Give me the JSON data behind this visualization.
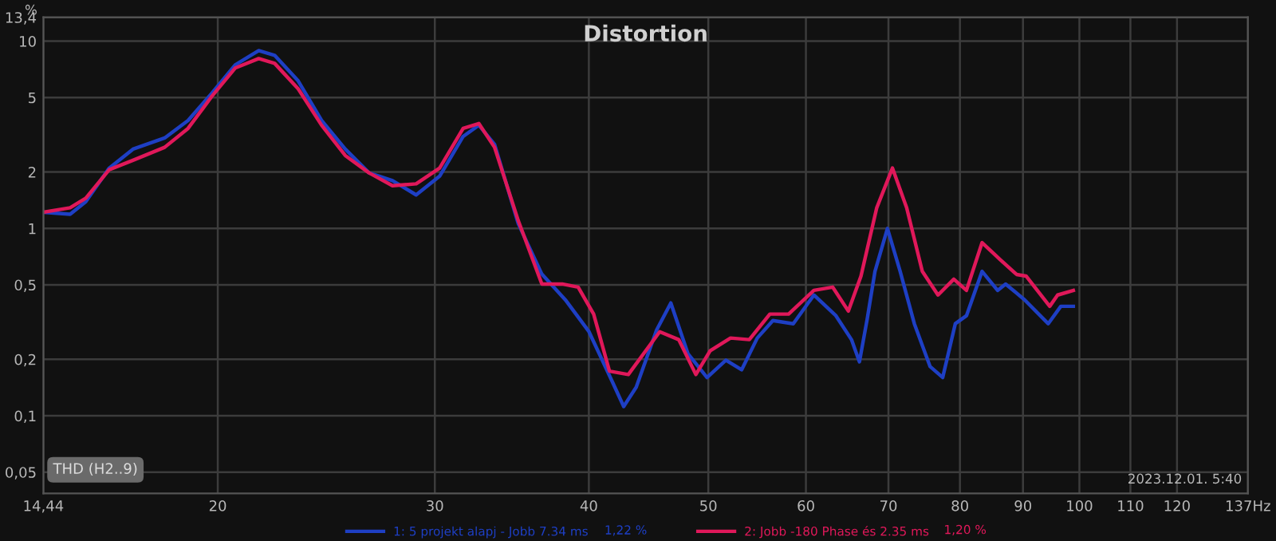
{
  "chart_data": {
    "type": "line",
    "title": "Distortion",
    "ylabel": "%",
    "log": "xy",
    "grid": true,
    "legend": "bottom",
    "marker": "none",
    "line_style": "solid",
    "xlim": [
      14.44,
      137
    ],
    "ylim": [
      0.0385,
      13.4
    ],
    "xticks": [
      {
        "value": 14.44,
        "label": "14,44"
      },
      20,
      30,
      40,
      50,
      60,
      70,
      80,
      90,
      100,
      110,
      120,
      {
        "value": 137,
        "label": "137Hz"
      }
    ],
    "yticks": [
      {
        "value": 0.05,
        "label": "0,05"
      },
      {
        "value": 0.1,
        "label": "0,1"
      },
      {
        "value": 0.2,
        "label": "0,2"
      },
      {
        "value": 0.5,
        "label": "0,5"
      },
      1,
      2,
      5,
      10,
      {
        "value": 13.4,
        "label": "13,4"
      }
    ],
    "annotations": [
      "THD (H2..9)",
      "2023.12.01. 5:40",
      "1,22 %",
      "1,20 %"
    ],
    "series": [
      {
        "name": "1: 5 projekt alapj - Jobb 7.34 ms",
        "color": "#1e3fc4",
        "x": [
          14.44,
          15.18,
          15.63,
          16.33,
          17.07,
          18.11,
          18.92,
          19.77,
          20.66,
          21.59,
          22.24,
          23.24,
          24.28,
          25.38,
          26.53,
          27.72,
          28.97,
          30.27,
          31.63,
          32.57,
          33.54,
          35.06,
          36.64,
          38.28,
          40.01,
          41.81,
          42.69,
          43.7,
          45.4,
          46.62,
          48.14,
          49.88,
          51.67,
          53.21,
          54.79,
          56.41,
          58.6,
          60.9,
          63.46,
          65.33,
          66.31,
          67.28,
          68.26,
          69.87,
          71.55,
          73.47,
          75.67,
          77.47,
          79.31,
          80.98,
          83.38,
          85.83,
          87.13,
          90.27,
          94.34,
          96.59,
          98.87
        ],
        "values": [
          1.22,
          1.19,
          1.39,
          2.1,
          2.65,
          3.04,
          3.77,
          5.25,
          7.46,
          8.9,
          8.4,
          6.14,
          3.77,
          2.65,
          1.98,
          1.8,
          1.51,
          1.9,
          3.1,
          3.56,
          2.81,
          1.06,
          0.57,
          0.416,
          0.281,
          0.151,
          0.112,
          0.142,
          0.287,
          0.4,
          0.214,
          0.16,
          0.198,
          0.176,
          0.26,
          0.322,
          0.31,
          0.441,
          0.342,
          0.255,
          0.194,
          0.329,
          0.59,
          1.0,
          0.59,
          0.31,
          0.183,
          0.16,
          0.31,
          0.342,
          0.59,
          0.467,
          0.505,
          0.416,
          0.31,
          0.384,
          0.384
        ]
      },
      {
        "name": "2: Jobb -180 Phase és 2.35 ms",
        "color": "#e0185a",
        "x": [
          14.44,
          15.18,
          15.63,
          16.33,
          17.07,
          18.11,
          18.92,
          19.77,
          20.66,
          21.59,
          22.24,
          23.24,
          24.28,
          25.38,
          26.53,
          27.72,
          28.97,
          30.27,
          31.63,
          32.57,
          33.54,
          35.06,
          36.64,
          38.06,
          39.21,
          40.36,
          41.57,
          43.06,
          45.66,
          47.31,
          48.85,
          50.17,
          52.12,
          53.98,
          56.09,
          58.09,
          60.9,
          63.07,
          64.95,
          66.5,
          68.49,
          70.53,
          72.42,
          74.57,
          76.79,
          79.09,
          80.98,
          83.38,
          86.35,
          88.93,
          90.52,
          94.61,
          96.01,
          98.87
        ],
        "values": [
          1.22,
          1.29,
          1.45,
          2.06,
          2.31,
          2.71,
          3.42,
          5.05,
          7.18,
          8.07,
          7.61,
          5.57,
          3.56,
          2.45,
          1.98,
          1.69,
          1.73,
          2.1,
          3.42,
          3.63,
          2.71,
          1.1,
          0.505,
          0.505,
          0.486,
          0.349,
          0.173,
          0.166,
          0.281,
          0.255,
          0.166,
          0.222,
          0.26,
          0.255,
          0.349,
          0.349,
          0.467,
          0.486,
          0.362,
          0.557,
          1.29,
          2.1,
          1.29,
          0.59,
          0.441,
          0.536,
          0.467,
          0.84,
          0.677,
          0.568,
          0.557,
          0.384,
          0.441,
          0.467
        ]
      }
    ]
  }
}
